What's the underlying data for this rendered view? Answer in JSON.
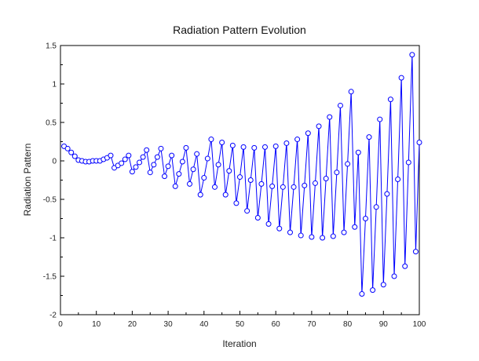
{
  "chart_data": {
    "type": "line",
    "title": "Radiation Pattern Evolution",
    "xlabel": "Iteration",
    "ylabel": "Radiation Pattern",
    "xlim": [
      0,
      100
    ],
    "ylim": [
      -2,
      1.5
    ],
    "x_ticks": [
      "0",
      "10",
      "20",
      "30",
      "40",
      "50",
      "60",
      "70",
      "80",
      "90",
      "100"
    ],
    "y_ticks": [
      "1.5",
      "1",
      "0.5",
      "0",
      "-0.5",
      "-1",
      "-1.5",
      "-2"
    ],
    "x_tick_values": [
      0,
      10,
      20,
      30,
      40,
      50,
      60,
      70,
      80,
      90,
      100
    ],
    "y_tick_values": [
      1.5,
      1,
      0.5,
      0,
      -0.5,
      -1,
      -1.5,
      -2
    ],
    "grid": false,
    "marker": "circle-open",
    "color": "#0000ff",
    "series": [
      {
        "x": [
          1,
          2,
          3,
          4,
          5,
          6,
          7,
          8,
          9,
          10,
          11,
          12,
          13,
          14,
          15,
          16,
          17,
          18,
          19,
          20,
          21,
          22,
          23,
          24,
          25,
          26,
          27,
          28,
          29,
          30,
          31,
          32,
          33,
          34,
          35,
          36,
          37,
          38,
          39,
          40,
          41,
          42,
          43,
          44,
          45,
          46,
          47,
          48,
          49,
          50,
          51,
          52,
          53,
          54,
          55,
          56,
          57,
          58,
          59,
          60,
          61,
          62,
          63,
          64,
          65,
          66,
          67,
          68,
          69,
          70,
          71,
          72,
          73,
          74,
          75,
          76,
          77,
          78,
          79,
          80,
          81,
          82,
          83,
          84,
          85,
          86,
          87,
          88,
          89,
          90,
          91,
          92,
          93,
          94,
          95,
          96,
          97,
          98,
          99,
          100
        ],
        "values": [
          0.19,
          0.16,
          0.11,
          0.06,
          0.01,
          0.0,
          -0.01,
          -0.01,
          0.0,
          0.0,
          0.0,
          0.02,
          0.04,
          0.07,
          -0.09,
          -0.06,
          -0.03,
          0.02,
          0.07,
          -0.14,
          -0.08,
          -0.02,
          0.05,
          0.14,
          -0.15,
          -0.05,
          0.05,
          0.16,
          -0.2,
          -0.07,
          0.07,
          -0.33,
          -0.17,
          -0.01,
          0.17,
          -0.3,
          -0.11,
          0.09,
          -0.44,
          -0.22,
          0.03,
          0.28,
          -0.34,
          -0.05,
          0.24,
          -0.44,
          -0.13,
          0.2,
          -0.55,
          -0.21,
          0.18,
          -0.65,
          -0.25,
          0.17,
          -0.74,
          -0.3,
          0.18,
          -0.82,
          -0.33,
          0.19,
          -0.88,
          -0.34,
          0.23,
          -0.93,
          -0.34,
          0.28,
          -0.97,
          -0.32,
          0.36,
          -0.99,
          -0.29,
          0.45,
          -1.0,
          -0.23,
          0.57,
          -0.98,
          -0.15,
          0.72,
          -0.93,
          -0.04,
          0.9,
          -0.86,
          0.11,
          -1.73,
          -0.75,
          0.31,
          -1.68,
          -0.6,
          0.54,
          -1.61,
          -0.43,
          0.8,
          -1.5,
          -0.24,
          1.08,
          -1.37,
          -0.02,
          1.38,
          -1.18,
          0.24
        ]
      }
    ]
  }
}
